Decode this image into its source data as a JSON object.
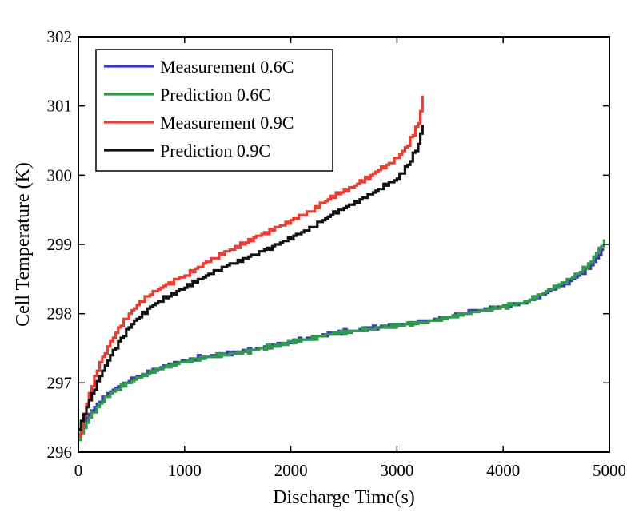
{
  "chart_data": {
    "type": "line",
    "title": "",
    "xlabel": "Discharge Time(s)",
    "ylabel": "Cell Temperature (K)",
    "xlim": [
      0,
      5000
    ],
    "ylim": [
      296,
      302
    ],
    "xticks": [
      0,
      1000,
      2000,
      3000,
      4000,
      5000
    ],
    "yticks": [
      296,
      297,
      298,
      299,
      300,
      301,
      302
    ],
    "grid": false,
    "legend_position": "top-left",
    "series": [
      {
        "name": "Measurement 0.6C",
        "color": "#3a3ab4",
        "x": [
          0,
          100,
          200,
          300,
          400,
          500,
          600,
          700,
          800,
          900,
          1000,
          1200,
          1400,
          1600,
          1800,
          2000,
          2200,
          2400,
          2600,
          2800,
          3000,
          3200,
          3400,
          3600,
          3800,
          4000,
          4200,
          4400,
          4600,
          4800,
          4950
        ],
        "y": [
          296.25,
          296.55,
          296.75,
          296.88,
          296.97,
          297.05,
          297.12,
          297.18,
          297.24,
          297.29,
          297.33,
          297.38,
          297.42,
          297.47,
          297.53,
          297.6,
          297.66,
          297.72,
          297.76,
          297.8,
          297.84,
          297.88,
          297.93,
          298.0,
          298.06,
          298.1,
          298.16,
          298.3,
          298.45,
          298.65,
          298.95
        ]
      },
      {
        "name": "Prediction 0.6C",
        "color": "#2e9a4c",
        "x": [
          0,
          100,
          200,
          300,
          400,
          500,
          600,
          700,
          800,
          900,
          1000,
          1200,
          1400,
          1600,
          1800,
          2000,
          2200,
          2400,
          2600,
          2800,
          3000,
          3200,
          3400,
          3600,
          3800,
          4000,
          4200,
          4400,
          4600,
          4800,
          4950
        ],
        "y": [
          296.2,
          296.5,
          296.7,
          296.85,
          296.95,
          297.03,
          297.1,
          297.16,
          297.22,
          297.27,
          297.31,
          297.37,
          297.41,
          297.46,
          297.52,
          297.59,
          297.65,
          297.71,
          297.75,
          297.79,
          297.83,
          297.87,
          297.92,
          297.99,
          298.05,
          298.1,
          298.17,
          298.32,
          298.48,
          298.7,
          299.05
        ]
      },
      {
        "name": "Measurement 0.9C",
        "color": "#ee3b2f",
        "x": [
          0,
          100,
          200,
          300,
          400,
          500,
          600,
          700,
          800,
          900,
          1000,
          1200,
          1400,
          1600,
          1800,
          2000,
          2200,
          2400,
          2600,
          2800,
          3000,
          3100,
          3200,
          3240
        ],
        "y": [
          296.2,
          296.85,
          297.3,
          297.6,
          297.85,
          298.05,
          298.2,
          298.3,
          298.4,
          298.48,
          298.55,
          298.75,
          298.9,
          299.05,
          299.2,
          299.35,
          299.5,
          299.7,
          299.85,
          300.05,
          300.25,
          300.45,
          300.75,
          301.15
        ]
      },
      {
        "name": "Prediction 0.9C",
        "color": "#111111",
        "x": [
          0,
          100,
          200,
          300,
          400,
          500,
          600,
          700,
          800,
          900,
          1000,
          1200,
          1400,
          1600,
          1800,
          2000,
          2200,
          2400,
          2600,
          2800,
          3000,
          3100,
          3200,
          3240
        ],
        "y": [
          296.35,
          296.75,
          297.1,
          297.4,
          297.65,
          297.85,
          298.0,
          298.12,
          298.22,
          298.3,
          298.38,
          298.55,
          298.7,
          298.82,
          298.95,
          299.1,
          299.25,
          299.45,
          299.6,
          299.78,
          299.95,
          300.15,
          300.45,
          300.75
        ]
      }
    ]
  }
}
